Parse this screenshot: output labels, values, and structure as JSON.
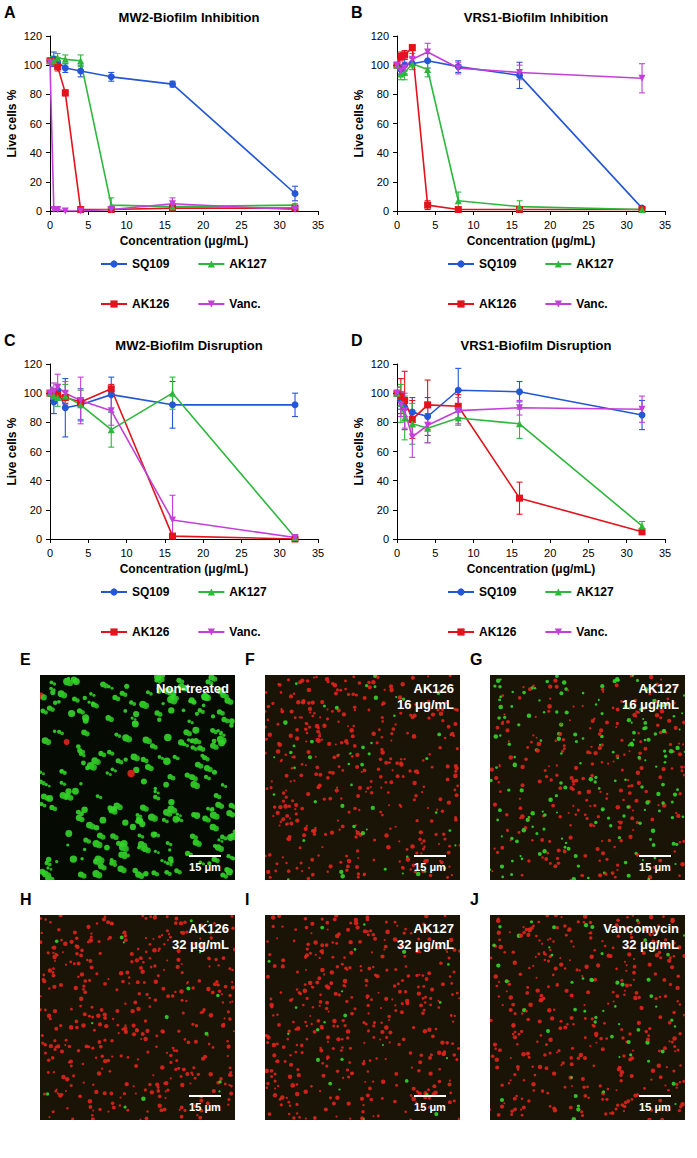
{
  "chart_data": [
    {
      "panel": "A",
      "type": "line",
      "title": "MW2-Biofilm Inhibition",
      "x_label": "Concentration (μg/mL)",
      "y_label": "Live cells %",
      "x": [
        0,
        0.5,
        1,
        2,
        4,
        8,
        16,
        32
      ],
      "xlim": [
        0,
        35
      ],
      "xticks": [
        0,
        5,
        10,
        15,
        20,
        25,
        30,
        35
      ],
      "ylim": [
        0,
        120
      ],
      "yticks": [
        0,
        20,
        40,
        60,
        80,
        100,
        120
      ],
      "grid": false,
      "legend": "bottom",
      "series": [
        {
          "name": "SQ109",
          "color": "#2457d6",
          "marker": "circle",
          "values": [
            103,
            104,
            102,
            98,
            96,
            92,
            87,
            12
          ],
          "errors": [
            3,
            5,
            3,
            3,
            4,
            3,
            2,
            5
          ]
        },
        {
          "name": "AK126",
          "color": "#e3131b",
          "marker": "square",
          "values": [
            103,
            103,
            99,
            81,
            1,
            1,
            2,
            2
          ],
          "errors": [
            2,
            3,
            3,
            2,
            1,
            1,
            1,
            1
          ]
        },
        {
          "name": "AK127",
          "color": "#2db83d",
          "marker": "triangle",
          "values": [
            103,
            103,
            105,
            104,
            103,
            4,
            3,
            4
          ],
          "errors": [
            3,
            3,
            3,
            3,
            4,
            5,
            2,
            1
          ]
        },
        {
          "name": "Vanc.",
          "color": "#c43fd9",
          "marker": "triangle-down",
          "values": [
            102,
            1,
            1,
            0,
            0,
            1,
            5,
            1
          ],
          "errors": [
            2,
            1,
            1,
            0,
            0,
            1,
            4,
            1
          ]
        }
      ]
    },
    {
      "panel": "B",
      "type": "line",
      "title": "VRS1-Biofilm Inhibition",
      "x_label": "Concentration (μg/mL)",
      "y_label": "Live cells %",
      "x": [
        0,
        0.5,
        1,
        2,
        4,
        8,
        16,
        32
      ],
      "xlim": [
        0,
        35
      ],
      "xticks": [
        0,
        5,
        10,
        15,
        20,
        25,
        30,
        35
      ],
      "ylim": [
        0,
        120
      ],
      "yticks": [
        0,
        20,
        40,
        60,
        80,
        100,
        120
      ],
      "grid": false,
      "legend": "bottom",
      "series": [
        {
          "name": "SQ109",
          "color": "#2457d6",
          "marker": "circle",
          "values": [
            100,
            97,
            100,
            101,
            103,
            99,
            93,
            2
          ],
          "errors": [
            3,
            3,
            4,
            4,
            5,
            4,
            9,
            1
          ]
        },
        {
          "name": "AK126",
          "color": "#e3131b",
          "marker": "square",
          "values": [
            100,
            106,
            107,
            112,
            4,
            1,
            1,
            1
          ],
          "errors": [
            3,
            3,
            3,
            2,
            3,
            1,
            1,
            1
          ]
        },
        {
          "name": "AK127",
          "color": "#2db83d",
          "marker": "triangle",
          "values": [
            100,
            94,
            95,
            101,
            97,
            7,
            3,
            1
          ],
          "errors": [
            4,
            4,
            5,
            4,
            5,
            6,
            4,
            1
          ]
        },
        {
          "name": "Vanc.",
          "color": "#c43fd9",
          "marker": "triangle-down",
          "values": [
            100,
            96,
            98,
            104,
            109,
            98,
            95,
            91
          ],
          "errors": [
            3,
            3,
            4,
            4,
            6,
            4,
            5,
            10
          ]
        }
      ]
    },
    {
      "panel": "C",
      "type": "line",
      "title": "MW2-Biofilm Disruption",
      "x_label": "Concentration (μg/mL)",
      "y_label": "Live cells %",
      "x": [
        0,
        0.5,
        1,
        2,
        4,
        8,
        16,
        32
      ],
      "xlim": [
        0,
        35
      ],
      "xticks": [
        0,
        5,
        10,
        15,
        20,
        25,
        30,
        35
      ],
      "ylim": [
        0,
        120
      ],
      "yticks": [
        0,
        20,
        40,
        60,
        80,
        100,
        120
      ],
      "grid": false,
      "legend": "bottom",
      "series": [
        {
          "name": "SQ109",
          "color": "#2457d6",
          "marker": "circle",
          "values": [
            100,
            94,
            102,
            90,
            92,
            99,
            92,
            92
          ],
          "errors": [
            4,
            8,
            4,
            20,
            11,
            12,
            16,
            8
          ]
        },
        {
          "name": "AK126",
          "color": "#e3131b",
          "marker": "square",
          "values": [
            100,
            100,
            99,
            97,
            94,
            103,
            2,
            0
          ],
          "errors": [
            2,
            3,
            3,
            4,
            3,
            3,
            1,
            1
          ]
        },
        {
          "name": "AK127",
          "color": "#2db83d",
          "marker": "triangle",
          "values": [
            100,
            98,
            97,
            98,
            92,
            75,
            100,
            1
          ],
          "errors": [
            3,
            4,
            6,
            8,
            10,
            12,
            11,
            1
          ]
        },
        {
          "name": "Vanc.",
          "color": "#c43fd9",
          "marker": "triangle-down",
          "values": [
            100,
            101,
            104,
            100,
            95,
            88,
            13,
            1
          ],
          "errors": [
            4,
            6,
            9,
            8,
            16,
            10,
            17,
            1
          ]
        }
      ]
    },
    {
      "panel": "D",
      "type": "line",
      "title": "VRS1-Biofilm Disruption",
      "x_label": "Concentration (μg/mL)",
      "y_label": "Live cells %",
      "x": [
        0,
        0.5,
        1,
        2,
        4,
        8,
        16,
        32
      ],
      "xlim": [
        0,
        35
      ],
      "xticks": [
        0,
        5,
        10,
        15,
        20,
        25,
        30,
        35
      ],
      "ylim": [
        0,
        120
      ],
      "yticks": [
        0,
        20,
        40,
        60,
        80,
        100,
        120
      ],
      "grid": false,
      "legend": "bottom",
      "series": [
        {
          "name": "SQ109",
          "color": "#2457d6",
          "marker": "circle",
          "values": [
            100,
            95,
            90,
            87,
            84,
            102,
            101,
            85
          ],
          "errors": [
            4,
            6,
            6,
            10,
            13,
            15,
            7,
            10
          ]
        },
        {
          "name": "AK126",
          "color": "#e3131b",
          "marker": "square",
          "values": [
            100,
            98,
            95,
            82,
            92,
            91,
            28,
            5
          ],
          "errors": [
            4,
            12,
            20,
            13,
            17,
            8,
            11,
            2
          ]
        },
        {
          "name": "AK127",
          "color": "#2db83d",
          "marker": "triangle",
          "values": [
            100,
            93,
            83,
            79,
            76,
            83,
            79,
            9
          ],
          "errors": [
            4,
            13,
            15,
            14,
            10,
            5,
            10,
            3
          ]
        },
        {
          "name": "Vanc.",
          "color": "#c43fd9",
          "marker": "triangle-down",
          "values": [
            100,
            92,
            88,
            70,
            78,
            88,
            90,
            89
          ],
          "errors": [
            4,
            8,
            12,
            14,
            12,
            9,
            5,
            9
          ]
        }
      ]
    }
  ],
  "images": [
    {
      "panel": "E",
      "label": [
        "Non-treated"
      ],
      "scale_bar": "15 μm"
    },
    {
      "panel": "F",
      "label": [
        "AK126",
        "16 μg/mL"
      ],
      "scale_bar": "15 μm"
    },
    {
      "panel": "G",
      "label": [
        "AK127",
        "16 μg/mL"
      ],
      "scale_bar": "15 μm"
    },
    {
      "panel": "H",
      "label": [
        "AK126",
        "32 μg/mL"
      ],
      "scale_bar": "15 μm"
    },
    {
      "panel": "I",
      "label": [
        "AK127",
        "32 μg/mL"
      ],
      "scale_bar": "15 μm"
    },
    {
      "panel": "J",
      "label": [
        "Vancomycin",
        "32 μg/mL"
      ],
      "scale_bar": "15 μm"
    }
  ]
}
